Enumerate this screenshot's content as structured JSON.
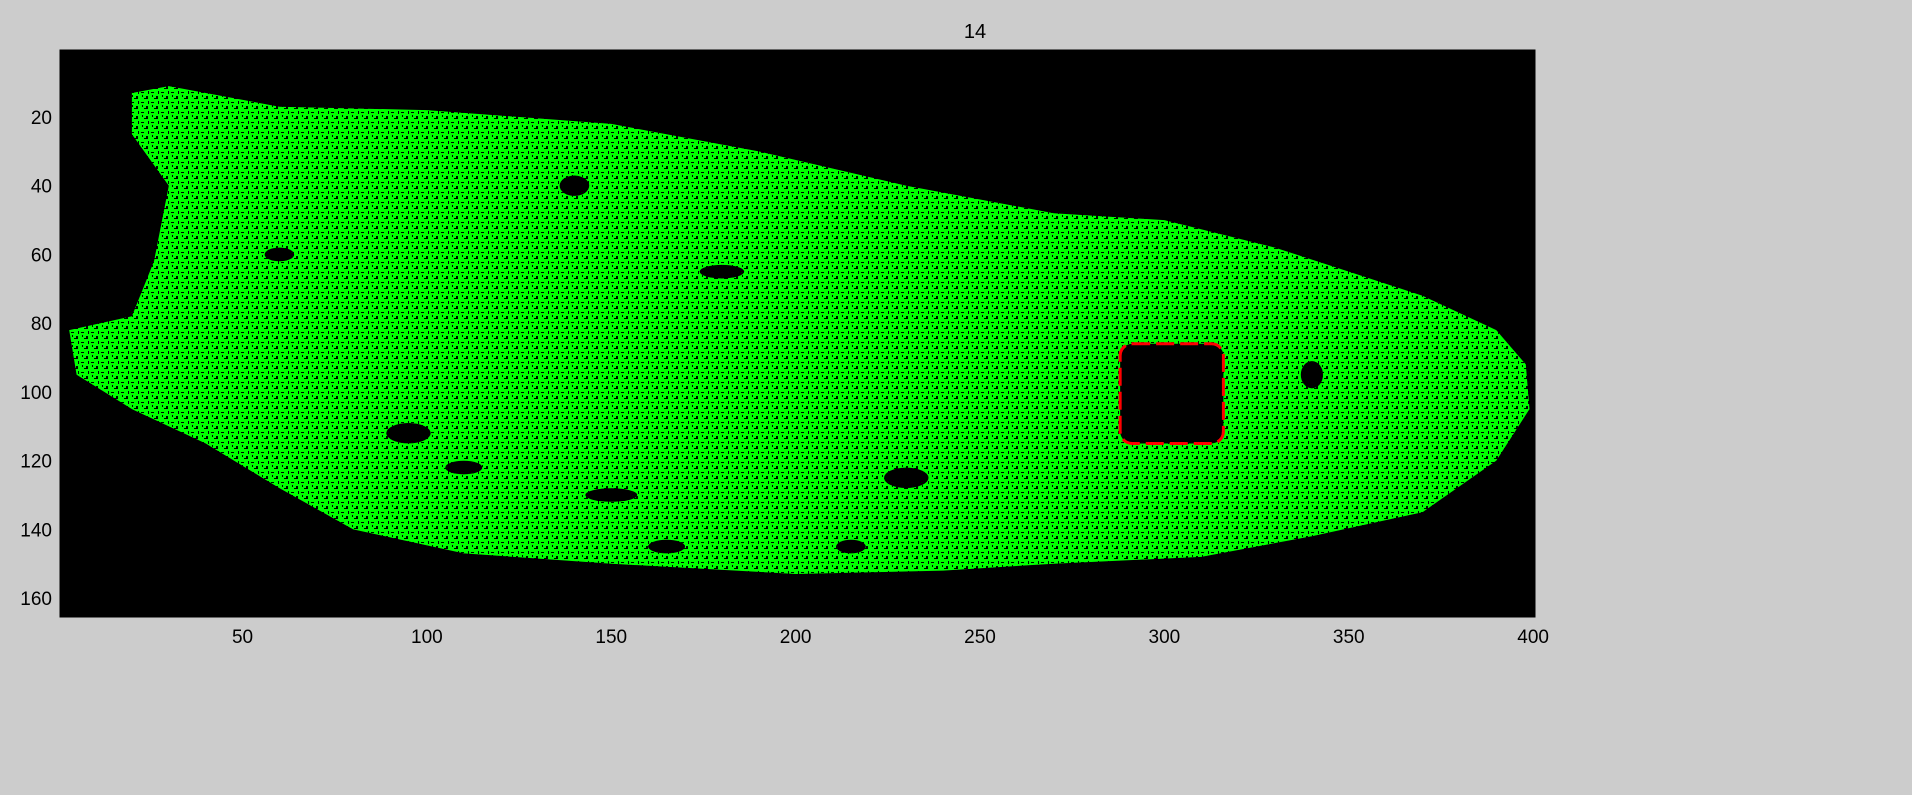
{
  "title": "14",
  "colors": {
    "window_background": "#cccccc",
    "axes_background": "#000000",
    "mask_color": "#00ff00",
    "boundary_color": "#ff0000",
    "axis_color": "#000000"
  },
  "axes": {
    "x_range": [
      1,
      400
    ],
    "y_range": [
      1,
      165
    ],
    "y_direction": "reversed",
    "x_ticks": [
      50,
      100,
      150,
      200,
      250,
      300,
      350,
      400
    ],
    "y_ticks": [
      20,
      40,
      60,
      80,
      100,
      120,
      140,
      160
    ],
    "grid": false
  },
  "image_content": {
    "description_kind": "binary mask",
    "mask_outline": [
      [
        20,
        13
      ],
      [
        30,
        11
      ],
      [
        60,
        17
      ],
      [
        100,
        18
      ],
      [
        150,
        22
      ],
      [
        190,
        30
      ],
      [
        230,
        40
      ],
      [
        270,
        48
      ],
      [
        300,
        50
      ],
      [
        330,
        58
      ],
      [
        350,
        65
      ],
      [
        370,
        72
      ],
      [
        390,
        82
      ],
      [
        398,
        92
      ],
      [
        399,
        105
      ],
      [
        390,
        120
      ],
      [
        370,
        135
      ],
      [
        340,
        142
      ],
      [
        310,
        148
      ],
      [
        270,
        150
      ],
      [
        240,
        152
      ],
      [
        200,
        153
      ],
      [
        150,
        150
      ],
      [
        110,
        147
      ],
      [
        80,
        140
      ],
      [
        60,
        128
      ],
      [
        40,
        115
      ],
      [
        20,
        105
      ],
      [
        5,
        95
      ],
      [
        3,
        82
      ],
      [
        20,
        78
      ],
      [
        26,
        62
      ],
      [
        30,
        40
      ],
      [
        20,
        25
      ]
    ],
    "boundary_region": {
      "x": [
        288,
        316
      ],
      "y": [
        86,
        115
      ]
    }
  }
}
